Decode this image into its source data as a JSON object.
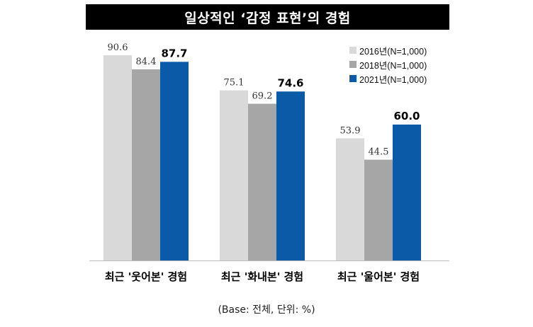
{
  "title": "일상적인 ‘감정 표현’의 경험",
  "footnote": "(Base: 전체, 단위: %)",
  "colors": {
    "title_background": "#000000",
    "title_text": "#ffffff"
  },
  "chart_data": {
    "type": "bar",
    "categories": [
      "최근 '웃어본' 경험",
      "최근 '화내본' 경험",
      "최근 '울어본' 경험"
    ],
    "series": [
      {
        "name": "2016년(N=1,000)",
        "color": "#d9d9d9",
        "values": [
          90.6,
          75.1,
          53.9
        ],
        "labels": [
          "90.6",
          "75.1",
          "53.9"
        ],
        "bold_labels": false
      },
      {
        "name": "2018년(N=1,000)",
        "color": "#a6a6a6",
        "values": [
          84.4,
          69.2,
          44.5
        ],
        "labels": [
          "84.4",
          "69.2",
          "44.5"
        ],
        "bold_labels": false
      },
      {
        "name": "2021년(N=1,000)",
        "color": "#0a5aa8",
        "values": [
          87.7,
          74.6,
          60.0
        ],
        "labels": [
          "87.7",
          "74.6",
          "60.0"
        ],
        "bold_labels": true
      }
    ],
    "ylim": [
      0,
      100
    ],
    "grid": false,
    "legend": "top-right"
  }
}
